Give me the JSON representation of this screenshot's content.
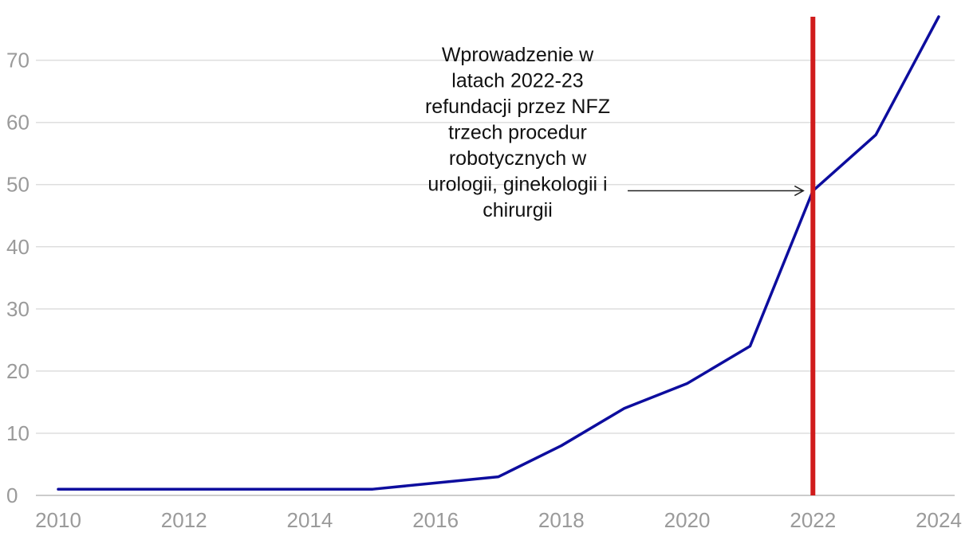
{
  "chart_data": {
    "type": "line",
    "title": "",
    "xlabel": "",
    "ylabel": "",
    "x": [
      2010,
      2011,
      2012,
      2013,
      2014,
      2015,
      2016,
      2017,
      2018,
      2019,
      2020,
      2021,
      2022,
      2023,
      2024
    ],
    "series": [
      {
        "values": [
          1,
          1,
          1,
          1,
          1,
          1,
          2,
          3,
          8,
          14,
          18,
          24,
          49,
          58,
          77
        ],
        "color": "#0d0d9e"
      }
    ],
    "xlim": [
      2010,
      2024
    ],
    "ylim": [
      0,
      77
    ],
    "x_ticks": [
      2010,
      2012,
      2014,
      2016,
      2018,
      2020,
      2022,
      2024
    ],
    "y_ticks": [
      0,
      10,
      20,
      30,
      40,
      50,
      60,
      70
    ],
    "grid": true,
    "reference_line": {
      "x": 2022,
      "color": "#d01c1c"
    },
    "annotation": {
      "lines": [
        "Wprowadzenie w",
        "latach 2022-23",
        "refundacji przez NFZ",
        "trzech procedur",
        "robotycznych w",
        "urologii, ginekologii i",
        "chirurgii"
      ],
      "points_to": {
        "x": 2022,
        "y": 49
      }
    }
  }
}
